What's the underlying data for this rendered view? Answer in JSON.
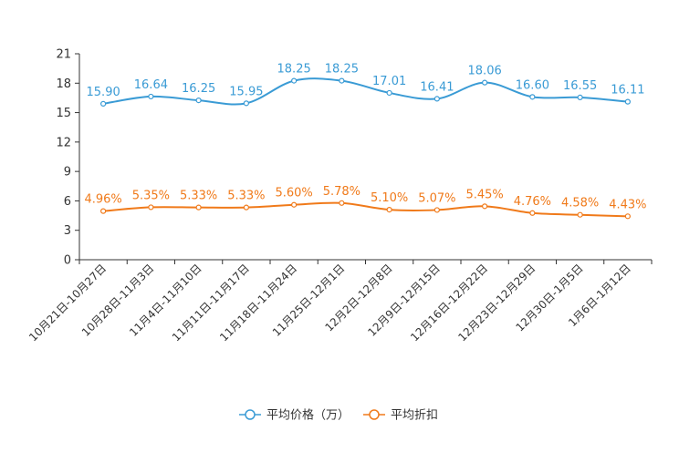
{
  "chart_data": {
    "type": "line",
    "title": "",
    "xlabel": "",
    "ylabel": "",
    "ylim": [
      0,
      21
    ],
    "yticks": [
      "0",
      "3",
      "6",
      "9",
      "12",
      "15",
      "18",
      "21"
    ],
    "categories": [
      "10月21日-10月27日",
      "10月28日-11月3日",
      "11月4日-11月10日",
      "11月11日-11月17日",
      "11月18日-11月24日",
      "11月25日-12月1日",
      "12月2日-12月8日",
      "12月9日-12月15日",
      "12月16日-12月22日",
      "12月23日-12月29日",
      "12月30日-1月5日",
      "1月6日-1月12日"
    ],
    "series": [
      {
        "name": "平均价格（万）",
        "color": "#3a9bd5",
        "values": [
          15.9,
          16.64,
          16.25,
          15.95,
          18.25,
          18.25,
          17.01,
          16.41,
          18.06,
          16.6,
          16.55,
          16.11
        ],
        "labels": [
          "15.90",
          "16.64",
          "16.25",
          "15.95",
          "18.25",
          "18.25",
          "17.01",
          "16.41",
          "18.06",
          "16.60",
          "16.55",
          "16.11"
        ]
      },
      {
        "name": "平均折扣",
        "color": "#f07a1a",
        "values": [
          4.96,
          5.35,
          5.33,
          5.33,
          5.6,
          5.78,
          5.1,
          5.07,
          5.45,
          4.76,
          4.58,
          4.43
        ],
        "labels": [
          "4.96%",
          "5.35%",
          "5.33%",
          "5.33%",
          "5.60%",
          "5.78%",
          "5.10%",
          "5.07%",
          "5.45%",
          "4.76%",
          "4.58%",
          "4.43%"
        ]
      }
    ],
    "legend_position": "bottom-center",
    "grid": false
  }
}
